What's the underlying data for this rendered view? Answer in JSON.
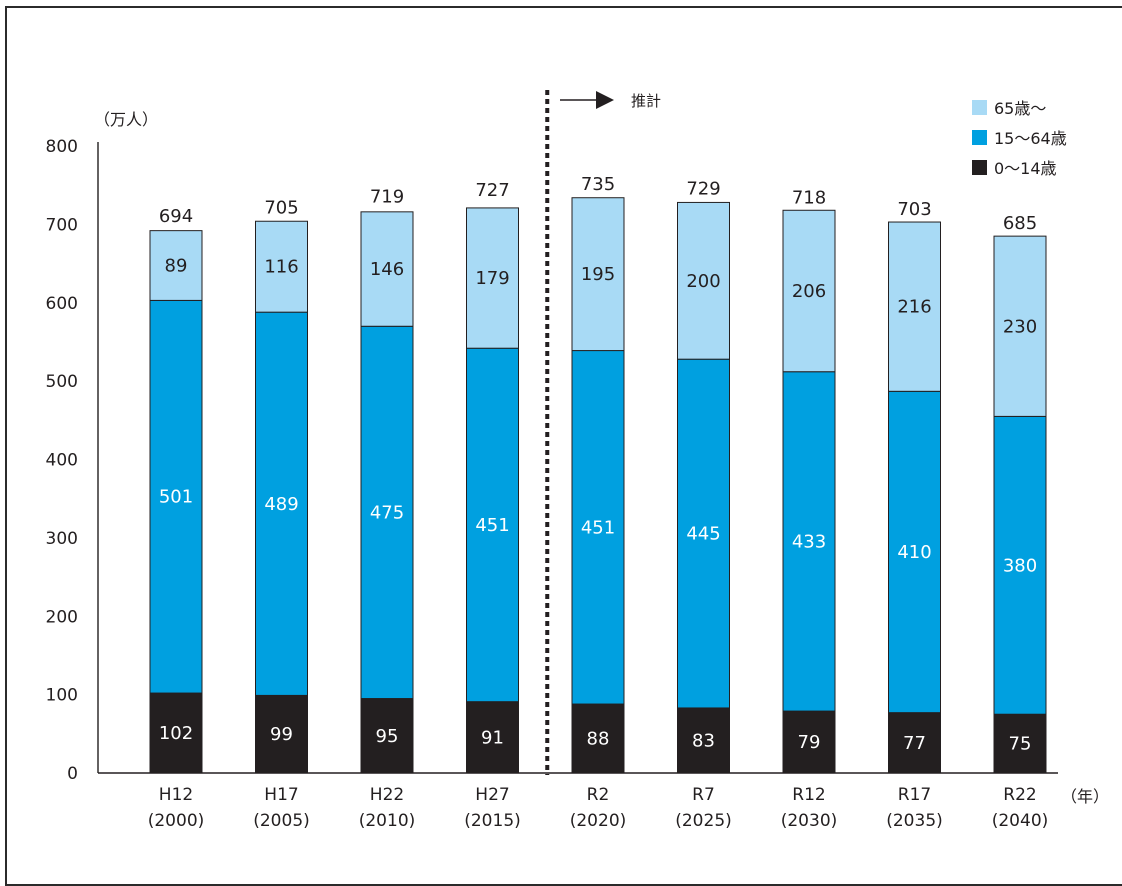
{
  "chart_data": {
    "type": "bar",
    "stacked": true,
    "y_unit_label": "（万人）",
    "x_unit_label": "（年）",
    "projection_label": "推計",
    "projection_starts_at": "R2\n(2020)",
    "ylim": [
      0,
      800
    ],
    "yticks": [
      0,
      100,
      200,
      300,
      400,
      500,
      600,
      700,
      800
    ],
    "categories": [
      "H12\n(2000)",
      "H17\n(2005)",
      "H22\n(2010)",
      "H27\n(2015)",
      "R2\n(2020)",
      "R7\n(2025)",
      "R12\n(2030)",
      "R17\n(2035)",
      "R22\n(2040)"
    ],
    "category_lines": [
      [
        "H12",
        "(2000)"
      ],
      [
        "H17",
        "(2005)"
      ],
      [
        "H22",
        "(2010)"
      ],
      [
        "H27",
        "(2015)"
      ],
      [
        "R2",
        "(2020)"
      ],
      [
        "R7",
        "(2025)"
      ],
      [
        "R12",
        "(2030)"
      ],
      [
        "R17",
        "(2035)"
      ],
      [
        "R22",
        "(2040)"
      ]
    ],
    "series": [
      {
        "name": "0〜14歳",
        "color": "#231f20",
        "label_color": "#ffffff",
        "values": [
          102,
          99,
          95,
          91,
          88,
          83,
          79,
          77,
          75
        ]
      },
      {
        "name": "15〜64歳",
        "color": "#00a0e0",
        "label_color": "#ffffff",
        "values": [
          501,
          489,
          475,
          451,
          451,
          445,
          433,
          410,
          380
        ]
      },
      {
        "name": "65歳〜",
        "color": "#a8daf5",
        "label_color": "#231f20",
        "values": [
          89,
          116,
          146,
          179,
          195,
          200,
          206,
          216,
          230
        ]
      }
    ],
    "totals": [
      694,
      705,
      719,
      727,
      735,
      729,
      718,
      703,
      685
    ],
    "legend_order": [
      "65歳〜",
      "15〜64歳",
      "0〜14歳"
    ],
    "legend_position": "top-right",
    "grid": false
  }
}
